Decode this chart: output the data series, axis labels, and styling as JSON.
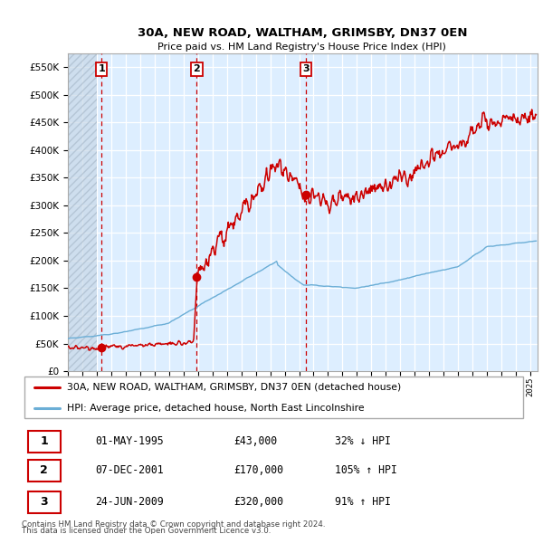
{
  "title": "30A, NEW ROAD, WALTHAM, GRIMSBY, DN37 0EN",
  "subtitle": "Price paid vs. HM Land Registry's House Price Index (HPI)",
  "ylim": [
    0,
    575000
  ],
  "yticks": [
    0,
    50000,
    100000,
    150000,
    200000,
    250000,
    300000,
    350000,
    400000,
    450000,
    500000,
    550000
  ],
  "xlim_start": 1993.0,
  "xlim_end": 2025.5,
  "sale_dates": [
    1995.33,
    2001.92,
    2009.48
  ],
  "sale_prices": [
    43000,
    170000,
    320000
  ],
  "sale_labels": [
    "1",
    "2",
    "3"
  ],
  "legend_line1": "30A, NEW ROAD, WALTHAM, GRIMSBY, DN37 0EN (detached house)",
  "legend_line2": "HPI: Average price, detached house, North East Lincolnshire",
  "table_rows": [
    {
      "num": "1",
      "date": "01-MAY-1995",
      "price": "£43,000",
      "hpi": "32% ↓ HPI"
    },
    {
      "num": "2",
      "date": "07-DEC-2001",
      "price": "£170,000",
      "hpi": "105% ↑ HPI"
    },
    {
      "num": "3",
      "date": "24-JUN-2009",
      "price": "£320,000",
      "hpi": "91% ↑ HPI"
    }
  ],
  "footer1": "Contains HM Land Registry data © Crown copyright and database right 2024.",
  "footer2": "This data is licensed under the Open Government Licence v3.0.",
  "hpi_color": "#6baed6",
  "price_color": "#cc0000",
  "bg_chart": "#ddeeff",
  "hatch_color": "#bbccdd"
}
